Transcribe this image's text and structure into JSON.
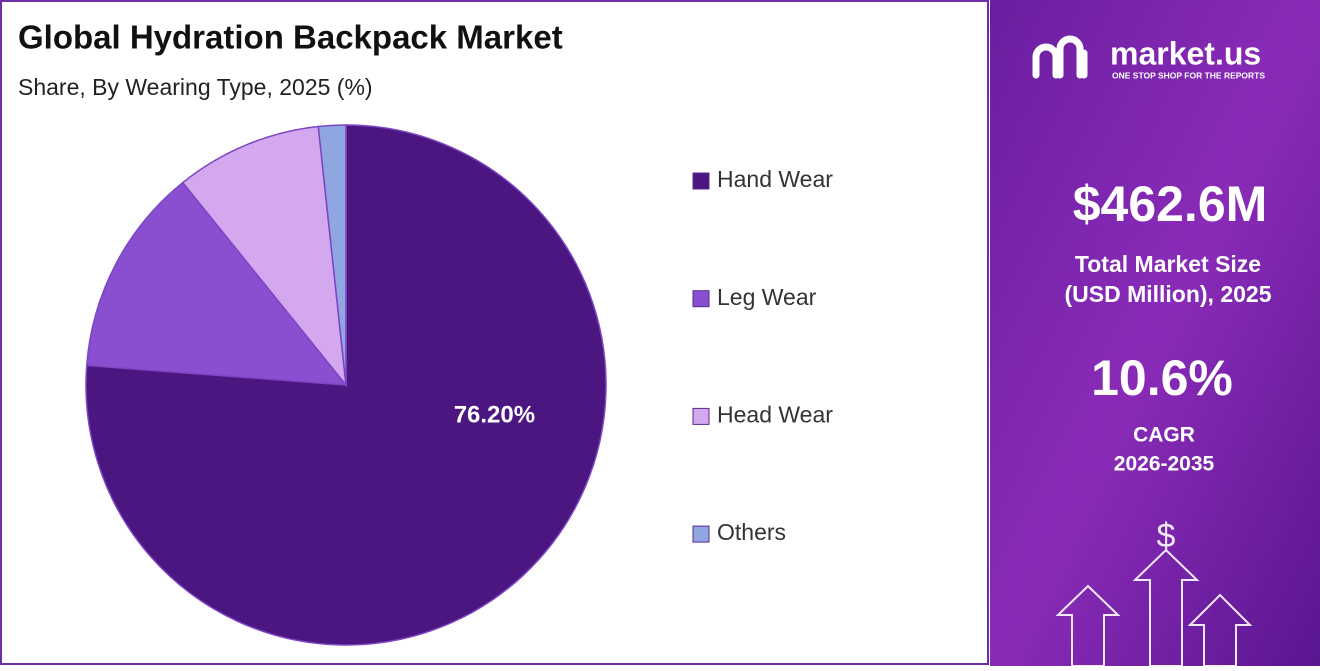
{
  "chart_data": {
    "type": "pie",
    "title": "Global Hydration Backpack Market",
    "subtitle": "Share, By Wearing Type, 2025 (%)",
    "categories": [
      "Hand Wear",
      "Leg Wear",
      "Head Wear",
      "Others"
    ],
    "values": [
      76.2,
      13.0,
      9.1,
      1.7
    ],
    "value_labels": [
      "76.20%",
      null,
      null,
      null
    ],
    "colors": [
      "#4b167f",
      "#8a4fd0",
      "#d4a8ef",
      "#8fa6e0"
    ],
    "legend": "right"
  },
  "side_panel": {
    "brand": "market.us",
    "tagline": "ONE STOP SHOP FOR THE REPORTS",
    "market_size": "$462.6M",
    "market_size_label_1": "Total Market Size",
    "market_size_label_2": "(USD Million), 2025",
    "cagr": "10.6%",
    "cagr_label": "CAGR",
    "cagr_period": "2026-2035"
  }
}
